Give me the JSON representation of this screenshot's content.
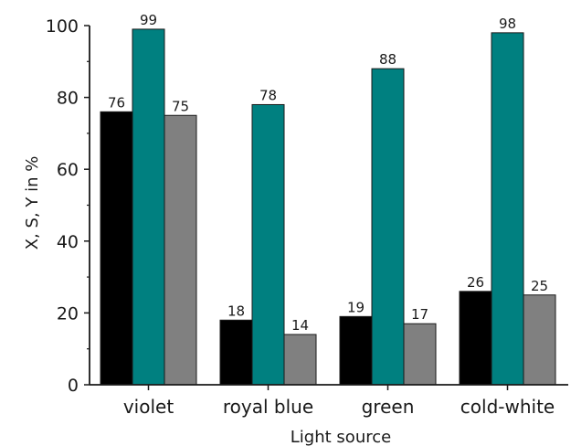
{
  "chart_data": {
    "type": "bar",
    "title": "",
    "xlabel": "Light source",
    "ylabel": "X, S, Y in %",
    "categories": [
      "violet",
      "royal blue",
      "green",
      "cold-white"
    ],
    "series": [
      {
        "values": [
          76,
          18,
          19,
          26
        ],
        "color": "#000000"
      },
      {
        "values": [
          99,
          78,
          88,
          98
        ],
        "color": "#008080"
      },
      {
        "values": [
          75,
          14,
          17,
          25
        ],
        "color": "#808080"
      }
    ],
    "ylim": [
      0,
      100
    ],
    "yticks": [
      "0",
      "20",
      "40",
      "60",
      "80",
      "100"
    ],
    "grid": false,
    "legend": "none",
    "data_labels": true
  }
}
